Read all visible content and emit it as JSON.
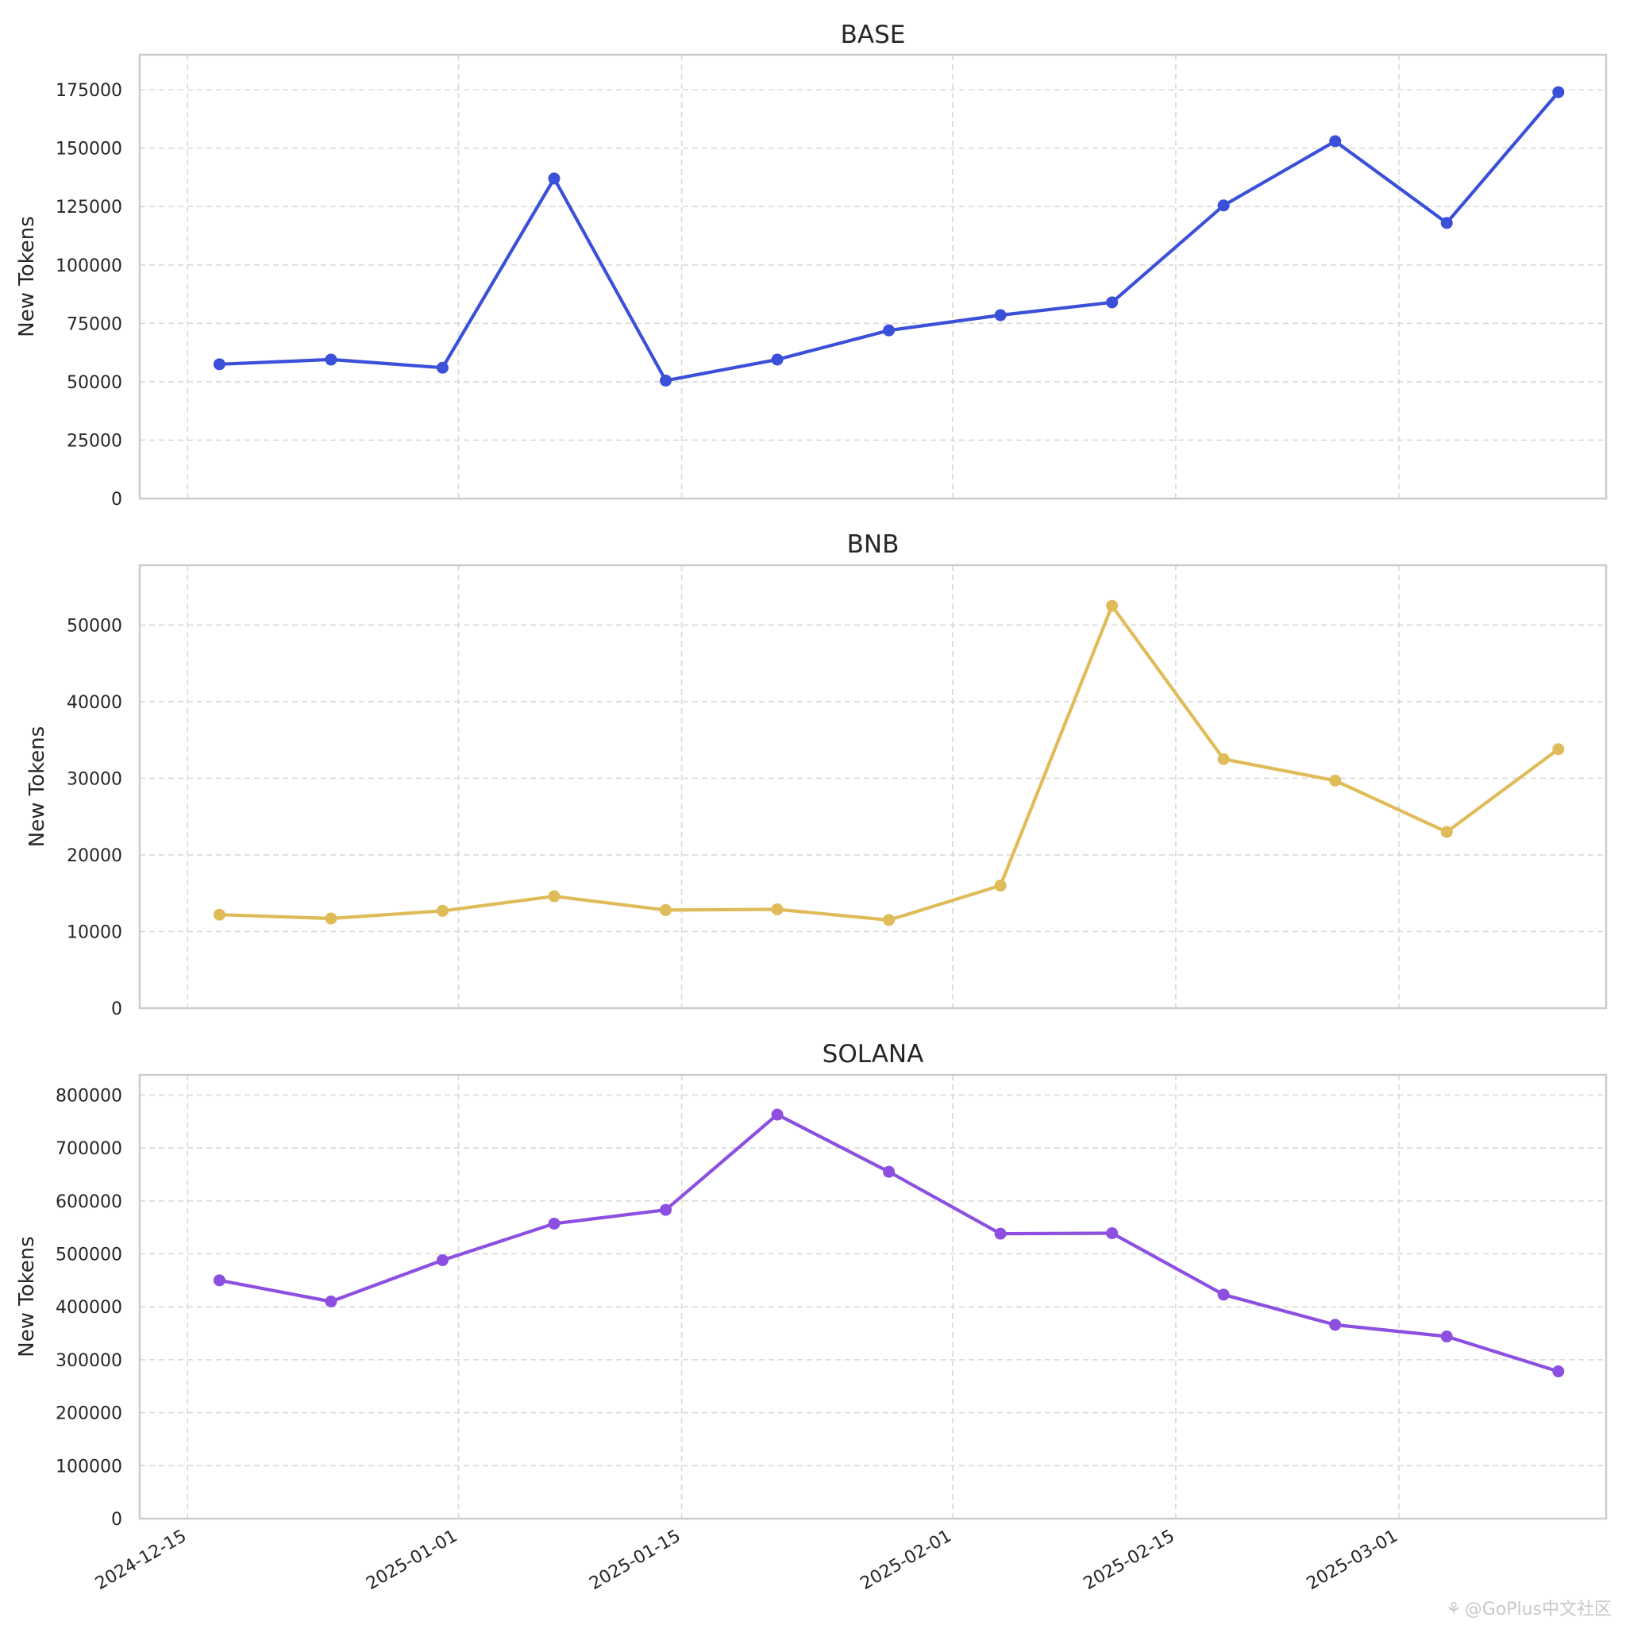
{
  "chart_data": [
    {
      "type": "line",
      "title": "BASE",
      "ylabel": "New Tokens",
      "xlabel": "",
      "color": "#3a50d9",
      "ylim": [
        0,
        190000
      ],
      "yticks": [
        0,
        25000,
        50000,
        75000,
        100000,
        125000,
        150000,
        175000
      ],
      "xlim": [
        "2024-12-12",
        "2025-03-14"
      ],
      "grid": true,
      "x": [
        "2024-12-17",
        "2024-12-24",
        "2024-12-31",
        "2025-01-07",
        "2025-01-14",
        "2025-01-21",
        "2025-01-28",
        "2025-02-04",
        "2025-02-11",
        "2025-02-18",
        "2025-02-25",
        "2025-03-04",
        "2025-03-11"
      ],
      "values": [
        57500,
        59500,
        56000,
        137000,
        50500,
        59500,
        72000,
        78500,
        84000,
        125500,
        153000,
        118000,
        174000
      ]
    },
    {
      "type": "line",
      "title": "BNB",
      "ylabel": "New Tokens",
      "xlabel": "",
      "color": "#e0bb59",
      "ylim": [
        0,
        57800
      ],
      "yticks": [
        0,
        10000,
        20000,
        30000,
        40000,
        50000
      ],
      "xlim": [
        "2024-12-12",
        "2025-03-14"
      ],
      "grid": true,
      "x": [
        "2024-12-17",
        "2024-12-24",
        "2024-12-31",
        "2025-01-07",
        "2025-01-14",
        "2025-01-21",
        "2025-01-28",
        "2025-02-04",
        "2025-02-11",
        "2025-02-18",
        "2025-02-25",
        "2025-03-04",
        "2025-03-11"
      ],
      "values": [
        12200,
        11700,
        12700,
        14600,
        12800,
        12900,
        11500,
        16000,
        52500,
        32500,
        29700,
        23000,
        33800
      ]
    },
    {
      "type": "line",
      "title": "SOLANA",
      "ylabel": "New Tokens",
      "xlabel": "",
      "color": "#8c4fe0",
      "ylim": [
        0,
        838000
      ],
      "yticks": [
        0,
        100000,
        200000,
        300000,
        400000,
        500000,
        600000,
        700000,
        800000
      ],
      "xlim": [
        "2024-12-12",
        "2025-03-14"
      ],
      "grid": true,
      "x": [
        "2024-12-17",
        "2024-12-24",
        "2024-12-31",
        "2025-01-07",
        "2025-01-14",
        "2025-01-21",
        "2025-01-28",
        "2025-02-04",
        "2025-02-11",
        "2025-02-18",
        "2025-02-25",
        "2025-03-04",
        "2025-03-11"
      ],
      "values": [
        450000,
        410000,
        488000,
        557000,
        583000,
        763000,
        655000,
        538000,
        539000,
        423000,
        366000,
        344000,
        278000
      ]
    }
  ],
  "x_axis": {
    "tick_dates": [
      "2024-12-15",
      "2025-01-01",
      "2025-01-15",
      "2025-02-01",
      "2025-02-15",
      "2025-03-01"
    ],
    "tick_labels": [
      "2024-12-15",
      "2025-01-01",
      "2025-01-15",
      "2025-02-01",
      "2025-02-15",
      "2025-03-01"
    ]
  },
  "watermark": {
    "text": "@GoPlus中文社区",
    "icon": "wechat-icon"
  }
}
